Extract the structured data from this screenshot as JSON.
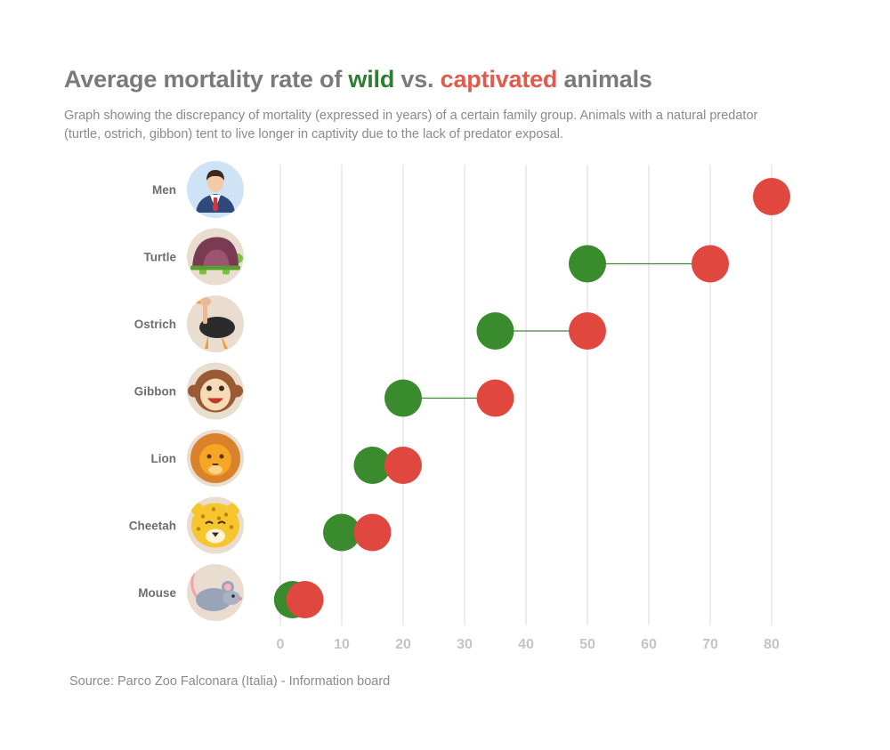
{
  "header": {
    "title_prefix": "Average mortality rate of ",
    "title_wild": "wild",
    "title_mid": " vs. ",
    "title_captivated": "captivated",
    "title_suffix": " animals",
    "subtitle": "Graph showing the discrepancy of mortality (expressed in years) of a certain family group. Animals with a natural predator (turtle, ostrich, gibbon) tent to live longer in captivity due to the lack of predator exposal."
  },
  "footer": {
    "source": "Source: Parco Zoo Falconara (Italia) - Information board"
  },
  "colors": {
    "wild": "#3a8a2e",
    "captivated": "#e0483f",
    "grid": "#ececec",
    "icon_bg": "#e9ddd0",
    "men_bg": "#cfe3f7"
  },
  "chart_data": {
    "type": "dumbbell",
    "title": "Average mortality rate of wild vs. captivated animals",
    "xlabel": "",
    "ylabel": "",
    "xlim": [
      0,
      80
    ],
    "xticks": [
      0,
      10,
      20,
      30,
      40,
      50,
      60,
      70,
      80
    ],
    "grid": true,
    "series": [
      {
        "name": "wild",
        "color": "#3a8a2e"
      },
      {
        "name": "captivated",
        "color": "#e0483f"
      }
    ],
    "rows": [
      {
        "label": "Men",
        "icon": "man-icon",
        "wild": null,
        "captivated": 80
      },
      {
        "label": "Turtle",
        "icon": "turtle-icon",
        "wild": 50,
        "captivated": 70
      },
      {
        "label": "Ostrich",
        "icon": "ostrich-icon",
        "wild": 35,
        "captivated": 50
      },
      {
        "label": "Gibbon",
        "icon": "gibbon-icon",
        "wild": 20,
        "captivated": 35
      },
      {
        "label": "Lion",
        "icon": "lion-icon",
        "wild": 15,
        "captivated": 20
      },
      {
        "label": "Cheetah",
        "icon": "cheetah-icon",
        "wild": 10,
        "captivated": 15
      },
      {
        "label": "Mouse",
        "icon": "mouse-icon",
        "wild": 2,
        "captivated": 4
      }
    ]
  }
}
